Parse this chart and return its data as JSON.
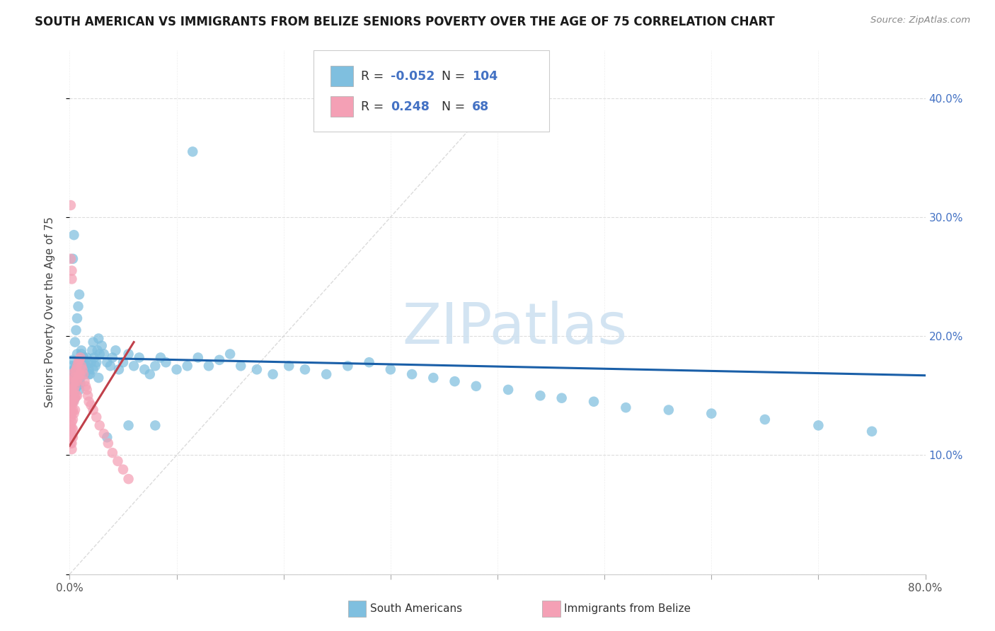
{
  "title": "SOUTH AMERICAN VS IMMIGRANTS FROM BELIZE SENIORS POVERTY OVER THE AGE OF 75 CORRELATION CHART",
  "source": "Source: ZipAtlas.com",
  "ylabel": "Seniors Poverty Over the Age of 75",
  "xlim": [
    0.0,
    0.8
  ],
  "ylim": [
    0.0,
    0.44
  ],
  "xtick_vals": [
    0.0,
    0.8
  ],
  "xtick_labels": [
    "0.0%",
    "80.0%"
  ],
  "ytick_vals": [
    0.1,
    0.2,
    0.3,
    0.4
  ],
  "ytick_labels_right": [
    "10.0%",
    "20.0%",
    "30.0%",
    "40.0%"
  ],
  "blue_color": "#7fbfdf",
  "pink_color": "#f4a0b5",
  "blue_line_color": "#1a5fa8",
  "pink_line_color": "#c0404a",
  "diag_color": "#cccccc",
  "watermark_text": "ZIPatlas",
  "watermark_color": "#cce0f0",
  "legend_r1_label": "R = ",
  "legend_r1_val": "-0.052",
  "legend_n1_label": "N = ",
  "legend_n1_val": "104",
  "legend_r2_label": "R =  ",
  "legend_r2_val": "0.248",
  "legend_n2_label": "N =  ",
  "legend_n2_val": "68",
  "bottom_legend1": "South Americans",
  "bottom_legend2": "Immigrants from Belize",
  "blue_x": [
    0.001,
    0.001,
    0.001,
    0.002,
    0.002,
    0.002,
    0.003,
    0.003,
    0.003,
    0.004,
    0.004,
    0.005,
    0.005,
    0.005,
    0.006,
    0.006,
    0.007,
    0.007,
    0.008,
    0.008,
    0.009,
    0.01,
    0.01,
    0.011,
    0.012,
    0.013,
    0.014,
    0.015,
    0.016,
    0.017,
    0.018,
    0.019,
    0.02,
    0.021,
    0.022,
    0.023,
    0.024,
    0.025,
    0.026,
    0.027,
    0.028,
    0.03,
    0.032,
    0.035,
    0.038,
    0.04,
    0.043,
    0.046,
    0.05,
    0.055,
    0.06,
    0.065,
    0.07,
    0.075,
    0.08,
    0.085,
    0.09,
    0.1,
    0.11,
    0.12,
    0.13,
    0.14,
    0.15,
    0.16,
    0.175,
    0.19,
    0.205,
    0.22,
    0.24,
    0.26,
    0.28,
    0.3,
    0.32,
    0.34,
    0.36,
    0.38,
    0.41,
    0.44,
    0.46,
    0.49,
    0.52,
    0.56,
    0.6,
    0.65,
    0.7,
    0.75,
    0.003,
    0.004,
    0.005,
    0.006,
    0.007,
    0.008,
    0.009,
    0.01,
    0.011,
    0.013,
    0.015,
    0.018,
    0.022,
    0.027,
    0.115,
    0.055,
    0.08,
    0.035
  ],
  "blue_y": [
    0.16,
    0.17,
    0.155,
    0.165,
    0.175,
    0.15,
    0.18,
    0.162,
    0.145,
    0.172,
    0.158,
    0.168,
    0.155,
    0.148,
    0.163,
    0.175,
    0.158,
    0.185,
    0.162,
    0.172,
    0.155,
    0.165,
    0.178,
    0.185,
    0.175,
    0.182,
    0.168,
    0.175,
    0.182,
    0.178,
    0.172,
    0.168,
    0.178,
    0.188,
    0.195,
    0.182,
    0.175,
    0.178,
    0.188,
    0.198,
    0.185,
    0.192,
    0.185,
    0.178,
    0.175,
    0.182,
    0.188,
    0.172,
    0.178,
    0.185,
    0.175,
    0.182,
    0.172,
    0.168,
    0.175,
    0.182,
    0.178,
    0.172,
    0.175,
    0.182,
    0.175,
    0.18,
    0.185,
    0.175,
    0.172,
    0.168,
    0.175,
    0.172,
    0.168,
    0.175,
    0.178,
    0.172,
    0.168,
    0.165,
    0.162,
    0.158,
    0.155,
    0.15,
    0.148,
    0.145,
    0.14,
    0.138,
    0.135,
    0.13,
    0.125,
    0.12,
    0.265,
    0.285,
    0.195,
    0.205,
    0.215,
    0.225,
    0.235,
    0.16,
    0.188,
    0.182,
    0.175,
    0.168,
    0.172,
    0.165,
    0.355,
    0.125,
    0.125,
    0.115
  ],
  "pink_x": [
    0.001,
    0.001,
    0.001,
    0.001,
    0.001,
    0.001,
    0.001,
    0.001,
    0.001,
    0.001,
    0.002,
    0.002,
    0.002,
    0.002,
    0.002,
    0.002,
    0.002,
    0.002,
    0.002,
    0.003,
    0.003,
    0.003,
    0.003,
    0.003,
    0.003,
    0.003,
    0.004,
    0.004,
    0.004,
    0.004,
    0.005,
    0.005,
    0.005,
    0.005,
    0.006,
    0.006,
    0.006,
    0.007,
    0.007,
    0.007,
    0.008,
    0.008,
    0.009,
    0.009,
    0.01,
    0.01,
    0.011,
    0.012,
    0.013,
    0.014,
    0.015,
    0.016,
    0.017,
    0.018,
    0.02,
    0.022,
    0.025,
    0.028,
    0.032,
    0.036,
    0.04,
    0.045,
    0.05,
    0.055,
    0.001,
    0.001,
    0.002,
    0.002
  ],
  "pink_y": [
    0.155,
    0.162,
    0.168,
    0.145,
    0.138,
    0.132,
    0.125,
    0.12,
    0.115,
    0.11,
    0.155,
    0.148,
    0.142,
    0.135,
    0.128,
    0.122,
    0.116,
    0.11,
    0.105,
    0.16,
    0.152,
    0.145,
    0.138,
    0.13,
    0.122,
    0.115,
    0.165,
    0.155,
    0.145,
    0.135,
    0.17,
    0.158,
    0.148,
    0.138,
    0.172,
    0.162,
    0.15,
    0.175,
    0.162,
    0.15,
    0.178,
    0.165,
    0.18,
    0.168,
    0.182,
    0.168,
    0.175,
    0.172,
    0.168,
    0.162,
    0.158,
    0.155,
    0.15,
    0.145,
    0.142,
    0.138,
    0.132,
    0.125,
    0.118,
    0.11,
    0.102,
    0.095,
    0.088,
    0.08,
    0.31,
    0.265,
    0.255,
    0.248
  ]
}
